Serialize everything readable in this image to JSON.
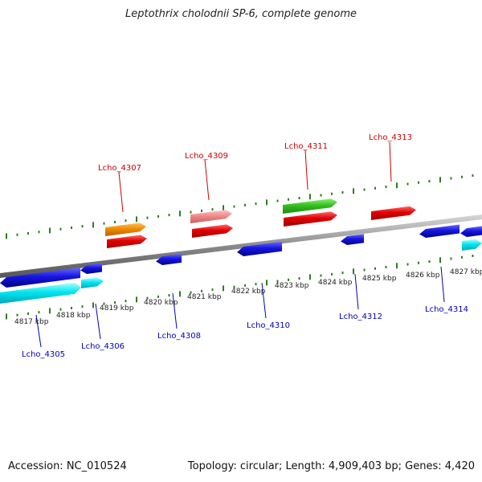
{
  "title": "Leptothrix cholodnii SP-6, complete genome",
  "footer": {
    "accession": "Accession: NC_010524",
    "topology": "Topology: circular; Length: 4,909,403 bp; Genes: 4,420"
  },
  "colors": {
    "plus_label": "#cc0000",
    "minus_label": "#0000bb",
    "backbone": "#8a8a8a",
    "tick": "#2e7d1e"
  },
  "kbp_labels": [
    "4817 kbp",
    "4818 kbp",
    "4819 kbp",
    "4820 kbp",
    "4821 kbp",
    "4822 kbp",
    "4823 kbp",
    "4824 kbp",
    "4825 kbp",
    "4826 kbp",
    "4827 kbp"
  ],
  "gene_labels_plus": [
    "Lcho_4307",
    "Lcho_4309",
    "Lcho_4311",
    "Lcho_4313"
  ],
  "gene_labels_minus": [
    "Lcho_4305",
    "Lcho_4306",
    "Lcho_4308",
    "Lcho_4310",
    "Lcho_4312",
    "Lcho_4314"
  ],
  "gene_color_legend": [
    "red",
    "orange",
    "pink",
    "green",
    "blue",
    "cyan"
  ]
}
